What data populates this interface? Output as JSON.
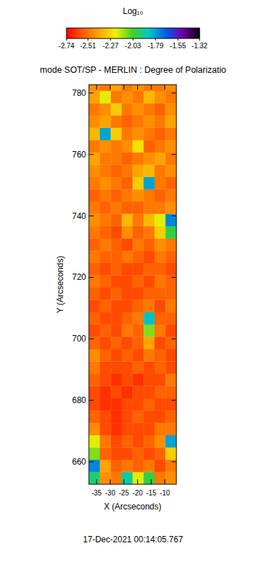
{
  "chart_data": {
    "type": "heatmap",
    "title": "mode SOT/SP - MERLIN : Degree of Polarizatio",
    "xlabel": "X (Arcseconds)",
    "ylabel": "Y (Arcseconds)",
    "annotation": "17-Dec-2021 00:14:05.767",
    "xlim": [
      -37.8,
      -5.8
    ],
    "ylim": [
      652.7,
      782.7
    ],
    "xticks": [
      -35,
      -30,
      -25,
      -20,
      -15,
      -10
    ],
    "yticks": [
      660,
      680,
      700,
      720,
      740,
      760,
      780
    ],
    "colorbar": {
      "label": "Log₁₀",
      "range": [
        -2.74,
        -1.32
      ],
      "ticks": [
        -2.74,
        -2.51,
        -2.27,
        -2.03,
        -1.79,
        -1.55,
        -1.32
      ]
    },
    "x": [
      -35.8,
      -31.8,
      -27.8,
      -23.8,
      -19.8,
      -15.8,
      -11.8,
      -7.8
    ],
    "y": [
      654.7,
      658.7,
      662.7,
      666.7,
      670.7,
      674.7,
      678.7,
      682.7,
      686.7,
      690.7,
      694.7,
      698.7,
      702.7,
      706.7,
      710.7,
      714.7,
      718.7,
      722.7,
      726.7,
      730.7,
      734.7,
      738.7,
      742.7,
      746.7,
      750.7,
      754.7,
      758.7,
      762.7,
      766.7,
      770.7,
      774.7,
      778.7,
      782.7
    ],
    "values": [
      [
        -1.95,
        -2.45,
        -2.5,
        -1.9,
        -2.2,
        -2.0,
        -2.5,
        -2.45
      ],
      [
        -1.75,
        -2.4,
        -2.55,
        -2.5,
        -2.55,
        -2.5,
        -2.6,
        -2.5
      ],
      [
        -2.1,
        -2.55,
        -2.6,
        -2.6,
        -2.55,
        -2.6,
        -2.55,
        -2.3
      ],
      [
        -2.2,
        -2.5,
        -2.6,
        -2.55,
        -2.6,
        -2.55,
        -2.45,
        -1.8
      ],
      [
        -2.45,
        -2.6,
        -2.65,
        -2.6,
        -2.6,
        -2.6,
        -2.5,
        -2.5
      ],
      [
        -2.55,
        -2.6,
        -2.65,
        -2.6,
        -2.55,
        -2.6,
        -2.6,
        -2.55
      ],
      [
        -2.6,
        -2.65,
        -2.65,
        -2.6,
        -2.6,
        -2.55,
        -2.6,
        -2.6
      ],
      [
        -2.6,
        -2.65,
        -2.6,
        -2.65,
        -2.6,
        -2.6,
        -2.55,
        -2.55
      ],
      [
        -2.55,
        -2.6,
        -2.65,
        -2.6,
        -2.65,
        -2.6,
        -2.6,
        -2.5
      ],
      [
        -2.5,
        -2.6,
        -2.6,
        -2.6,
        -2.55,
        -2.6,
        -2.55,
        -2.6
      ],
      [
        -2.45,
        -2.55,
        -2.6,
        -2.55,
        -2.6,
        -2.5,
        -2.55,
        -2.6
      ],
      [
        -2.55,
        -2.6,
        -2.55,
        -2.6,
        -2.55,
        -2.4,
        -2.6,
        -2.55
      ],
      [
        -2.6,
        -2.55,
        -2.6,
        -2.5,
        -2.55,
        -2.1,
        -2.5,
        -2.6
      ],
      [
        -2.55,
        -2.6,
        -2.6,
        -2.55,
        -2.5,
        -1.85,
        -2.55,
        -2.55
      ],
      [
        -2.6,
        -2.55,
        -2.6,
        -2.6,
        -2.55,
        -2.5,
        -2.6,
        -2.5
      ],
      [
        -2.55,
        -2.6,
        -2.55,
        -2.6,
        -2.6,
        -2.55,
        -2.55,
        -2.55
      ],
      [
        -2.5,
        -2.55,
        -2.6,
        -2.6,
        -2.55,
        -2.6,
        -2.5,
        -2.55
      ],
      [
        -2.55,
        -2.6,
        -2.55,
        -2.6,
        -2.6,
        -2.55,
        -2.55,
        -2.6
      ],
      [
        -2.5,
        -2.55,
        -2.55,
        -2.5,
        -2.55,
        -2.6,
        -2.5,
        -2.55
      ],
      [
        -2.55,
        -2.5,
        -2.55,
        -2.6,
        -2.5,
        -2.55,
        -2.45,
        -2.5
      ],
      [
        -2.5,
        -2.55,
        -2.6,
        -2.45,
        -2.55,
        -2.5,
        -2.3,
        -2.0
      ],
      [
        -2.45,
        -2.5,
        -2.55,
        -2.35,
        -2.5,
        -2.35,
        -2.2,
        -1.75
      ],
      [
        -2.5,
        -2.55,
        -2.5,
        -2.55,
        -2.55,
        -2.5,
        -2.5,
        -2.45
      ],
      [
        -2.55,
        -2.5,
        -2.55,
        -2.5,
        -2.45,
        -2.5,
        -2.55,
        -2.5
      ],
      [
        -2.5,
        -2.45,
        -2.5,
        -2.55,
        -2.3,
        -1.8,
        -2.5,
        -2.55
      ],
      [
        -2.45,
        -2.5,
        -2.55,
        -2.5,
        -2.4,
        -2.35,
        -2.5,
        -2.45
      ],
      [
        -2.4,
        -2.5,
        -2.5,
        -2.55,
        -2.5,
        -2.45,
        -2.4,
        -2.5
      ],
      [
        -2.5,
        -2.45,
        -2.5,
        -2.45,
        -2.25,
        -2.55,
        -2.5,
        -2.45
      ],
      [
        -2.35,
        -1.8,
        -2.3,
        -2.5,
        -2.45,
        -2.5,
        -2.55,
        -2.5
      ],
      [
        -2.45,
        -2.4,
        -2.5,
        -2.55,
        -2.5,
        -2.45,
        -2.5,
        -2.4
      ],
      [
        -2.5,
        -2.45,
        -2.3,
        -2.5,
        -2.45,
        -2.5,
        -2.55,
        -2.45
      ],
      [
        -2.4,
        -2.2,
        -2.5,
        -2.45,
        -2.5,
        -2.35,
        -2.45,
        -2.5
      ],
      [
        -2.45,
        -2.5,
        -2.4,
        -2.5,
        -2.45,
        -2.5,
        -2.5,
        -2.45
      ]
    ]
  }
}
